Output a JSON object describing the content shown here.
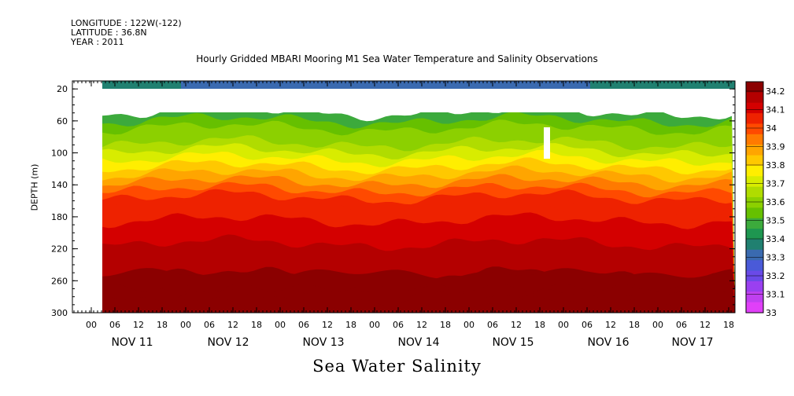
{
  "header": {
    "longitude": "LONGITUDE : 122W(-122)",
    "latitude": "LATITUDE : 36.8N",
    "year": "YEAR : 2011"
  },
  "chart_data": {
    "type": "heatmap",
    "title": "Hourly Gridded MBARI Mooring M1 Sea Water Temperature and Salinity Observations",
    "subtitle": "Sea Water Salinity",
    "ylabel": "DEPTH (m)",
    "ylim": [
      300,
      0
    ],
    "y_ticks": [
      20,
      60,
      100,
      140,
      180,
      220,
      260,
      300
    ],
    "x_hour_ticks": [
      "00",
      "06",
      "12",
      "18",
      "00",
      "06",
      "12",
      "18",
      "00",
      "06",
      "12",
      "18",
      "00",
      "06",
      "12",
      "18",
      "00",
      "06",
      "12",
      "18",
      "00",
      "06",
      "12",
      "18",
      "00",
      "06",
      "12",
      "18"
    ],
    "x_day_labels": [
      "NOV 11",
      "NOV 12",
      "NOV 13",
      "NOV 14",
      "NOV 15",
      "NOV 16",
      "NOV 17"
    ],
    "colorbar": {
      "levels": [
        "34.2",
        "34.1",
        "34",
        "33.9",
        "33.8",
        "33.7",
        "33.6",
        "33.5",
        "33.4",
        "33.3",
        "33.2",
        "33.1",
        "33"
      ],
      "colors": [
        "#8b0000",
        "#b40000",
        "#d40000",
        "#ee2200",
        "#ff4a00",
        "#ff7a00",
        "#ffa500",
        "#ffc800",
        "#ffee00",
        "#d8ec00",
        "#b0dc00",
        "#8cd000",
        "#66c000",
        "#3caa3c",
        "#1e9650",
        "#208070",
        "#3a6ab0",
        "#4a5ad8",
        "#6a4ae8",
        "#9a40f0",
        "#c040f0",
        "#e040f8"
      ]
    },
    "depth_profile": {
      "depths": [
        10,
        40,
        60,
        80,
        100,
        120,
        140,
        160,
        180,
        200,
        220,
        240,
        260,
        280,
        300
      ],
      "salinity": [
        33.35,
        33.45,
        33.5,
        33.6,
        33.72,
        33.82,
        33.95,
        34.02,
        34.07,
        34.1,
        34.13,
        34.16,
        34.2,
        34.18,
        34.17
      ]
    }
  }
}
